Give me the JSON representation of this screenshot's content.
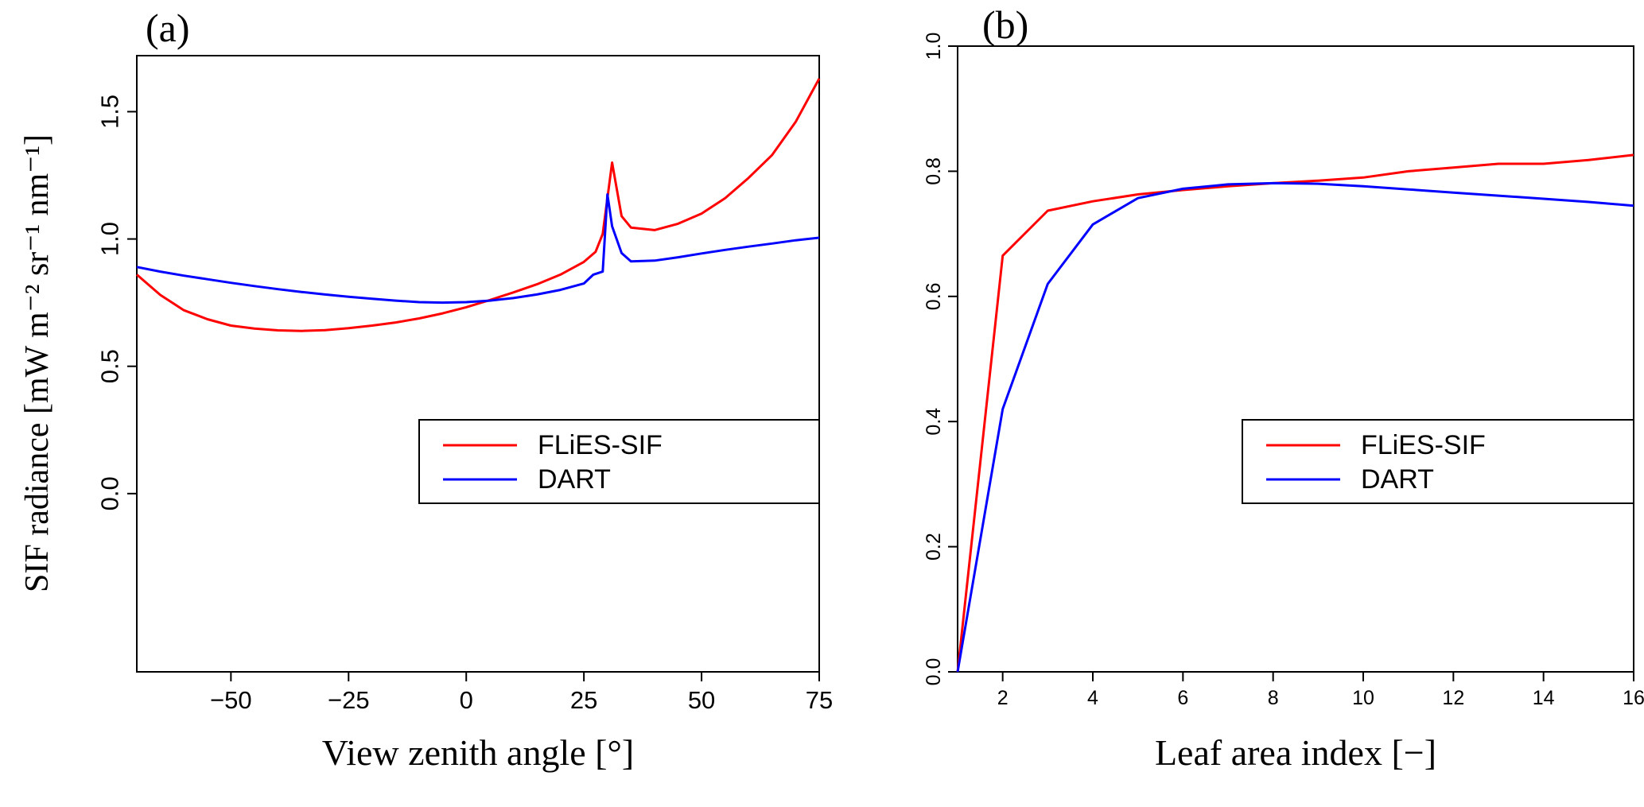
{
  "chart_data": [
    {
      "type": "line",
      "panel_label": "(a)",
      "xlabel": "View zenith angle [°]",
      "ylabel": "SIF radiance [mW m⁻² sr⁻¹ nm⁻¹]",
      "xlim": [
        -70,
        75
      ],
      "ylim": [
        -0.7,
        1.72
      ],
      "grid": false,
      "legend_position": "bottom-right",
      "xticks": [
        {
          "v": -50,
          "label": "−50"
        },
        {
          "v": -25,
          "label": "−25"
        },
        {
          "v": 0,
          "label": "0"
        },
        {
          "v": 25,
          "label": "25"
        },
        {
          "v": 50,
          "label": "50"
        },
        {
          "v": 75,
          "label": "75"
        }
      ],
      "yticks": [
        {
          "v": 0,
          "label": "0.0"
        },
        {
          "v": 0.5,
          "label": "0.5"
        },
        {
          "v": 1,
          "label": "1.0"
        },
        {
          "v": 1.5,
          "label": "1.5"
        }
      ],
      "series": [
        {
          "name": "FLiES-SIF",
          "color": "#ff0000",
          "x": [
            -70,
            -65,
            -60,
            -55,
            -50,
            -45,
            -40,
            -35,
            -30,
            -25,
            -20,
            -15,
            -10,
            -5,
            0,
            5,
            10,
            15,
            20,
            25,
            27.5,
            29,
            31,
            33,
            35,
            40,
            45,
            50,
            55,
            60,
            65,
            70,
            75
          ],
          "y": [
            0.86,
            0.78,
            0.72,
            0.685,
            0.66,
            0.648,
            0.641,
            0.639,
            0.642,
            0.65,
            0.66,
            0.672,
            0.688,
            0.708,
            0.732,
            0.76,
            0.79,
            0.822,
            0.86,
            0.91,
            0.95,
            1.02,
            1.3,
            1.09,
            1.045,
            1.035,
            1.06,
            1.1,
            1.16,
            1.24,
            1.33,
            1.46,
            1.63
          ]
        },
        {
          "name": "DART",
          "color": "#0000ff",
          "x": [
            -70,
            -65,
            -60,
            -55,
            -50,
            -45,
            -40,
            -35,
            -30,
            -25,
            -20,
            -15,
            -10,
            -5,
            0,
            5,
            10,
            15,
            20,
            25,
            27,
            29,
            30,
            31,
            33,
            35,
            40,
            45,
            50,
            55,
            60,
            65,
            70,
            75
          ],
          "y": [
            0.89,
            0.872,
            0.856,
            0.842,
            0.828,
            0.815,
            0.803,
            0.792,
            0.782,
            0.773,
            0.765,
            0.758,
            0.752,
            0.75,
            0.752,
            0.758,
            0.768,
            0.782,
            0.8,
            0.825,
            0.86,
            0.872,
            1.175,
            1.05,
            0.945,
            0.912,
            0.915,
            0.928,
            0.943,
            0.957,
            0.97,
            0.982,
            0.995,
            1.005
          ]
        }
      ]
    },
    {
      "type": "line",
      "panel_label": "(b)",
      "xlabel": "Leaf area index [−]",
      "ylabel": "",
      "xlim": [
        1,
        16
      ],
      "ylim": [
        0,
        1.0
      ],
      "grid": false,
      "legend_position": "bottom-right",
      "xticks": [
        {
          "v": 2,
          "label": "2"
        },
        {
          "v": 4,
          "label": "4"
        },
        {
          "v": 6,
          "label": "6"
        },
        {
          "v": 8,
          "label": "8"
        },
        {
          "v": 10,
          "label": "10"
        },
        {
          "v": 12,
          "label": "12"
        },
        {
          "v": 14,
          "label": "14"
        },
        {
          "v": 16,
          "label": "16"
        }
      ],
      "yticks": [
        {
          "v": 0,
          "label": "0.0"
        },
        {
          "v": 0.2,
          "label": "0.2"
        },
        {
          "v": 0.4,
          "label": "0.4"
        },
        {
          "v": 0.6,
          "label": "0.6"
        },
        {
          "v": 0.8,
          "label": "0.8"
        },
        {
          "v": 1.0,
          "label": "1.0"
        }
      ],
      "series": [
        {
          "name": "FLiES-SIF",
          "color": "#ff0000",
          "x": [
            1,
            2,
            3,
            4,
            5,
            6,
            7,
            8,
            9,
            10,
            11,
            12,
            13,
            14,
            15,
            16
          ],
          "y": [
            0.0,
            0.665,
            0.737,
            0.752,
            0.763,
            0.77,
            0.776,
            0.781,
            0.785,
            0.79,
            0.8,
            0.806,
            0.812,
            0.812,
            0.818,
            0.826
          ]
        },
        {
          "name": "DART",
          "color": "#0000ff",
          "x": [
            1,
            2,
            3,
            4,
            5,
            6,
            7,
            8,
            9,
            10,
            11,
            12,
            13,
            14,
            15,
            16
          ],
          "y": [
            0.0,
            0.42,
            0.62,
            0.715,
            0.757,
            0.772,
            0.779,
            0.781,
            0.78,
            0.776,
            0.771,
            0.766,
            0.761,
            0.756,
            0.751,
            0.745
          ]
        }
      ]
    }
  ]
}
